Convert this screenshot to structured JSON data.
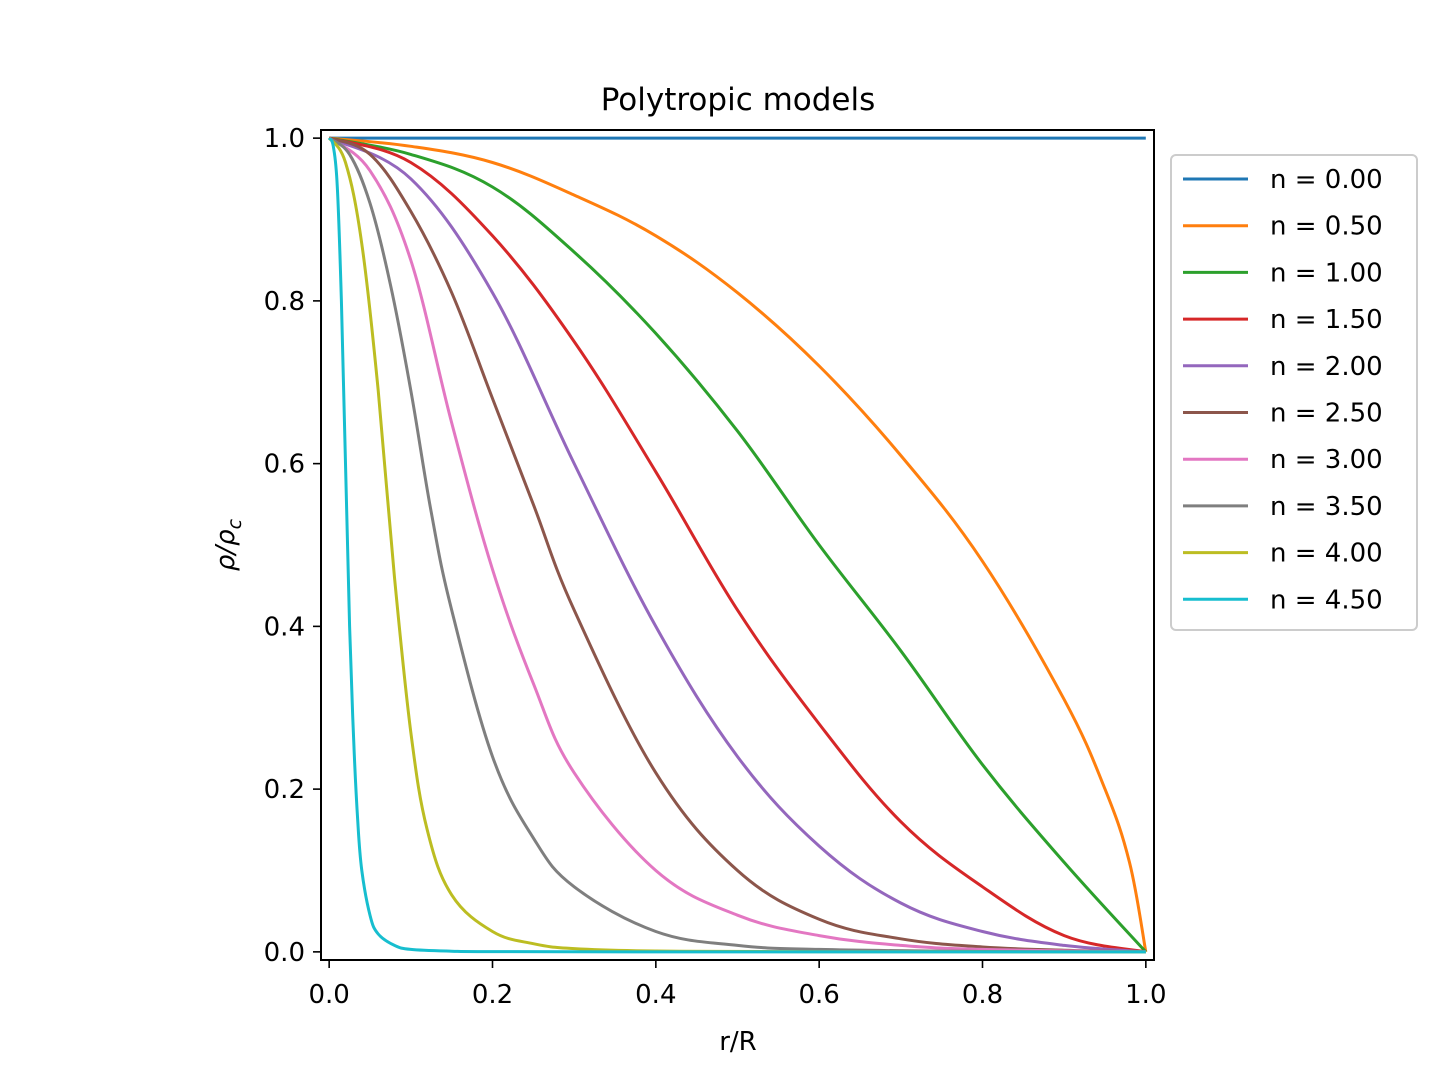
{
  "chart_data": {
    "type": "line",
    "title": "Polytropic models",
    "xlabel": "r/R",
    "ylabel": "ρ/ρc",
    "ylabel_main": "ρ/ρ",
    "ylabel_sub": "c",
    "xlim": [
      -0.01,
      1.01
    ],
    "ylim": [
      -0.01,
      1.01
    ],
    "xticks": [
      0.0,
      0.2,
      0.4,
      0.6,
      0.8,
      1.0
    ],
    "xtick_labels": [
      "0.0",
      "0.2",
      "0.4",
      "0.6",
      "0.8",
      "1.0"
    ],
    "yticks": [
      0.0,
      0.2,
      0.4,
      0.6,
      0.8,
      1.0
    ],
    "ytick_labels": [
      "0.0",
      "0.2",
      "0.4",
      "0.6",
      "0.8",
      "1.0"
    ],
    "grid": false,
    "legend_position": "outside upper right",
    "series": [
      {
        "name": "n = 0.00",
        "n": 0.0,
        "color": "#1f77b4",
        "x": [
          0.0,
          1.0
        ],
        "y": [
          1.0,
          1.0
        ]
      },
      {
        "name": "n = 0.50",
        "n": 0.5,
        "color": "#ff7f0e",
        "x": [
          0.0,
          0.1,
          0.2,
          0.3,
          0.4,
          0.5,
          0.6,
          0.7,
          0.8,
          0.9,
          0.95,
          0.98,
          1.0
        ],
        "y": [
          1.0,
          0.99,
          0.97,
          0.93,
          0.88,
          0.81,
          0.72,
          0.61,
          0.48,
          0.31,
          0.2,
          0.11,
          0.0
        ]
      },
      {
        "name": "n = 1.00",
        "n": 1.0,
        "color": "#2ca02c",
        "x": [
          0.0,
          0.1,
          0.2,
          0.3,
          0.4,
          0.5,
          0.6,
          0.7,
          0.8,
          0.9,
          1.0
        ],
        "y": [
          1.0,
          0.98,
          0.94,
          0.86,
          0.76,
          0.64,
          0.5,
          0.37,
          0.23,
          0.11,
          0.0
        ]
      },
      {
        "name": "n = 1.50",
        "n": 1.5,
        "color": "#d62728",
        "x": [
          0.0,
          0.1,
          0.2,
          0.3,
          0.4,
          0.5,
          0.6,
          0.7,
          0.8,
          0.9,
          1.0
        ],
        "y": [
          1.0,
          0.97,
          0.88,
          0.75,
          0.59,
          0.42,
          0.28,
          0.16,
          0.08,
          0.02,
          0.0
        ]
      },
      {
        "name": "n = 2.00",
        "n": 2.0,
        "color": "#9467bd",
        "x": [
          0.0,
          0.1,
          0.2,
          0.3,
          0.4,
          0.5,
          0.6,
          0.7,
          0.8,
          0.9,
          1.0
        ],
        "y": [
          1.0,
          0.95,
          0.81,
          0.6,
          0.4,
          0.24,
          0.13,
          0.06,
          0.025,
          0.008,
          0.0
        ]
      },
      {
        "name": "n = 2.50",
        "n": 2.5,
        "color": "#8c564b",
        "x": [
          0.0,
          0.05,
          0.1,
          0.15,
          0.2,
          0.25,
          0.3,
          0.4,
          0.5,
          0.6,
          0.7,
          0.8,
          0.9,
          1.0
        ],
        "y": [
          1.0,
          0.98,
          0.91,
          0.81,
          0.68,
          0.55,
          0.42,
          0.22,
          0.1,
          0.04,
          0.016,
          0.006,
          0.002,
          0.0
        ]
      },
      {
        "name": "n = 3.00",
        "n": 3.0,
        "color": "#e377c2",
        "x": [
          0.0,
          0.05,
          0.1,
          0.15,
          0.2,
          0.25,
          0.3,
          0.4,
          0.5,
          0.6,
          0.7,
          0.8,
          1.0
        ],
        "y": [
          1.0,
          0.96,
          0.85,
          0.65,
          0.47,
          0.33,
          0.22,
          0.1,
          0.045,
          0.02,
          0.008,
          0.003,
          0.0
        ]
      },
      {
        "name": "n = 3.50",
        "n": 3.5,
        "color": "#7f7f7f",
        "x": [
          0.0,
          0.025,
          0.05,
          0.075,
          0.1,
          0.125,
          0.15,
          0.2,
          0.25,
          0.3,
          0.4,
          0.5,
          0.6,
          0.8,
          1.0
        ],
        "y": [
          1.0,
          0.98,
          0.92,
          0.82,
          0.69,
          0.54,
          0.42,
          0.24,
          0.14,
          0.08,
          0.025,
          0.008,
          0.003,
          0.0005,
          0.0
        ]
      },
      {
        "name": "n = 4.00",
        "n": 4.0,
        "color": "#bcbd22",
        "x": [
          0.0,
          0.02,
          0.04,
          0.06,
          0.08,
          0.1,
          0.12,
          0.15,
          0.2,
          0.25,
          0.3,
          0.4,
          0.6,
          1.0
        ],
        "y": [
          1.0,
          0.97,
          0.87,
          0.69,
          0.46,
          0.27,
          0.15,
          0.07,
          0.025,
          0.01,
          0.004,
          0.001,
          0.0002,
          0.0
        ]
      },
      {
        "name": "n = 4.50",
        "n": 4.5,
        "color": "#17becf",
        "x": [
          0.0,
          0.005,
          0.01,
          0.015,
          0.02,
          0.025,
          0.03,
          0.035,
          0.04,
          0.05,
          0.06,
          0.08,
          0.1,
          0.15,
          0.2,
          0.4,
          1.0
        ],
        "y": [
          1.0,
          0.99,
          0.94,
          0.8,
          0.6,
          0.4,
          0.26,
          0.16,
          0.1,
          0.045,
          0.022,
          0.008,
          0.003,
          0.0008,
          0.0003,
          0.0,
          0.0
        ]
      }
    ]
  }
}
